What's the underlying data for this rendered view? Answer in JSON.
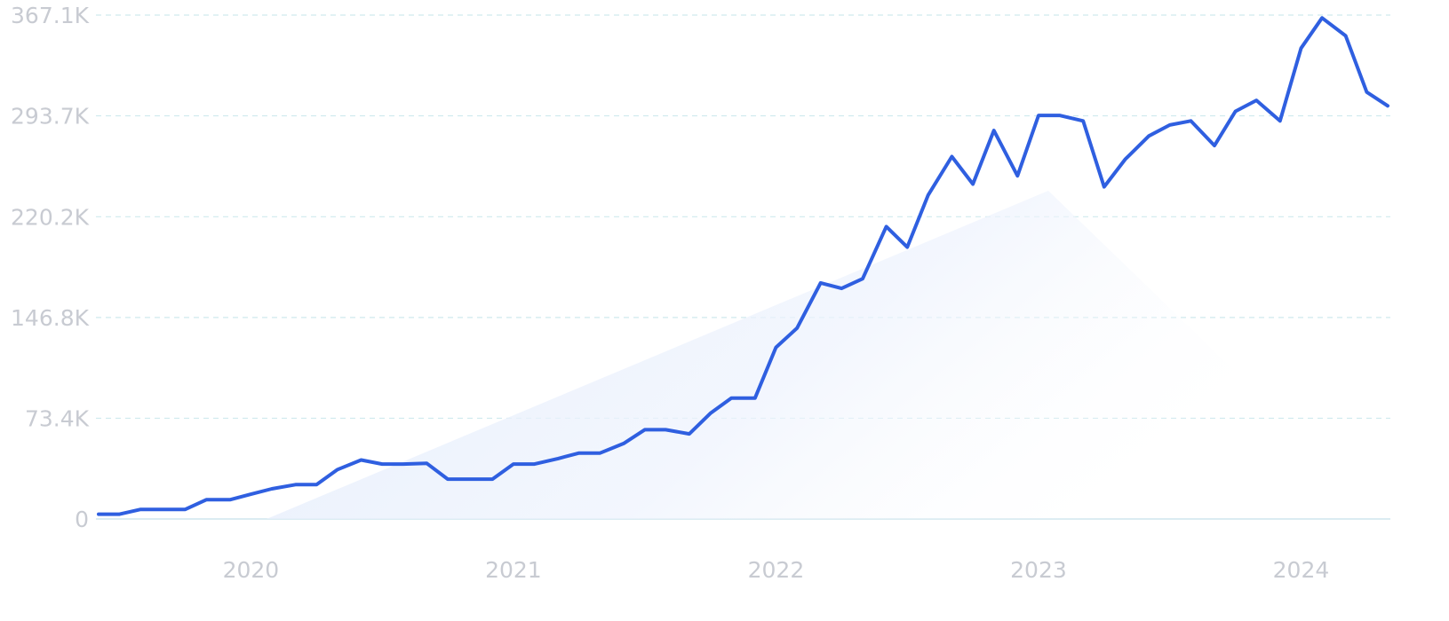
{
  "chart_data": {
    "type": "line",
    "title": "",
    "xlabel": "",
    "ylabel": "",
    "y_ticks": [
      "0",
      "73.4K",
      "146.8K",
      "220.2K",
      "293.7K",
      "367.1K"
    ],
    "y_tick_values": [
      0,
      73400,
      146800,
      220200,
      293700,
      367100
    ],
    "ylim": [
      0,
      367100
    ],
    "x_ticks": [
      "2020",
      "2021",
      "2022",
      "2023",
      "2024"
    ],
    "x_tick_values": [
      2020.0,
      2021.0,
      2022.0,
      2023.0,
      2024.0
    ],
    "xlim": [
      2019.42,
      2024.33
    ],
    "grid": true,
    "legend": "none",
    "colors": {
      "line": "#2f5fe0",
      "grid": "#cfe9ee",
      "tick_text": "#c8cbd2",
      "fill": "#e6eefc"
    },
    "series": [
      {
        "x": [
          2019.42,
          2019.5,
          2019.58,
          2019.67,
          2019.75,
          2019.83,
          2019.92,
          2020.0,
          2020.08,
          2020.17,
          2020.25,
          2020.33,
          2020.42,
          2020.5,
          2020.58,
          2020.67,
          2020.75,
          2020.83,
          2020.92,
          2021.0,
          2021.08,
          2021.17,
          2021.25,
          2021.33,
          2021.42,
          2021.5,
          2021.58,
          2021.67,
          2021.75,
          2021.83,
          2021.92,
          2022.0,
          2022.08,
          2022.17,
          2022.25,
          2022.33,
          2022.42,
          2022.5,
          2022.58,
          2022.67,
          2022.75,
          2022.83,
          2022.92,
          2023.0,
          2023.08,
          2023.17,
          2023.25,
          2023.33,
          2023.42,
          2023.5,
          2023.58,
          2023.67,
          2023.75,
          2023.83,
          2023.92,
          2024.0,
          2024.08,
          2024.17,
          2024.25,
          2024.33
        ],
        "values": [
          3500,
          3500,
          7000,
          7000,
          7000,
          14000,
          14000,
          18000,
          22000,
          25000,
          25000,
          36000,
          43000,
          40000,
          40000,
          40500,
          29000,
          29000,
          29000,
          40000,
          40000,
          44000,
          48000,
          48000,
          55000,
          65000,
          65000,
          62000,
          77000,
          88000,
          88000,
          125000,
          139000,
          172000,
          168000,
          175000,
          213000,
          198000,
          236000,
          264000,
          244000,
          283000,
          250000,
          294000,
          294000,
          290000,
          242000,
          262000,
          279000,
          287000,
          290000,
          272000,
          297000,
          305000,
          290000,
          343000,
          365000,
          352000,
          311000,
          301000
        ]
      }
    ]
  }
}
